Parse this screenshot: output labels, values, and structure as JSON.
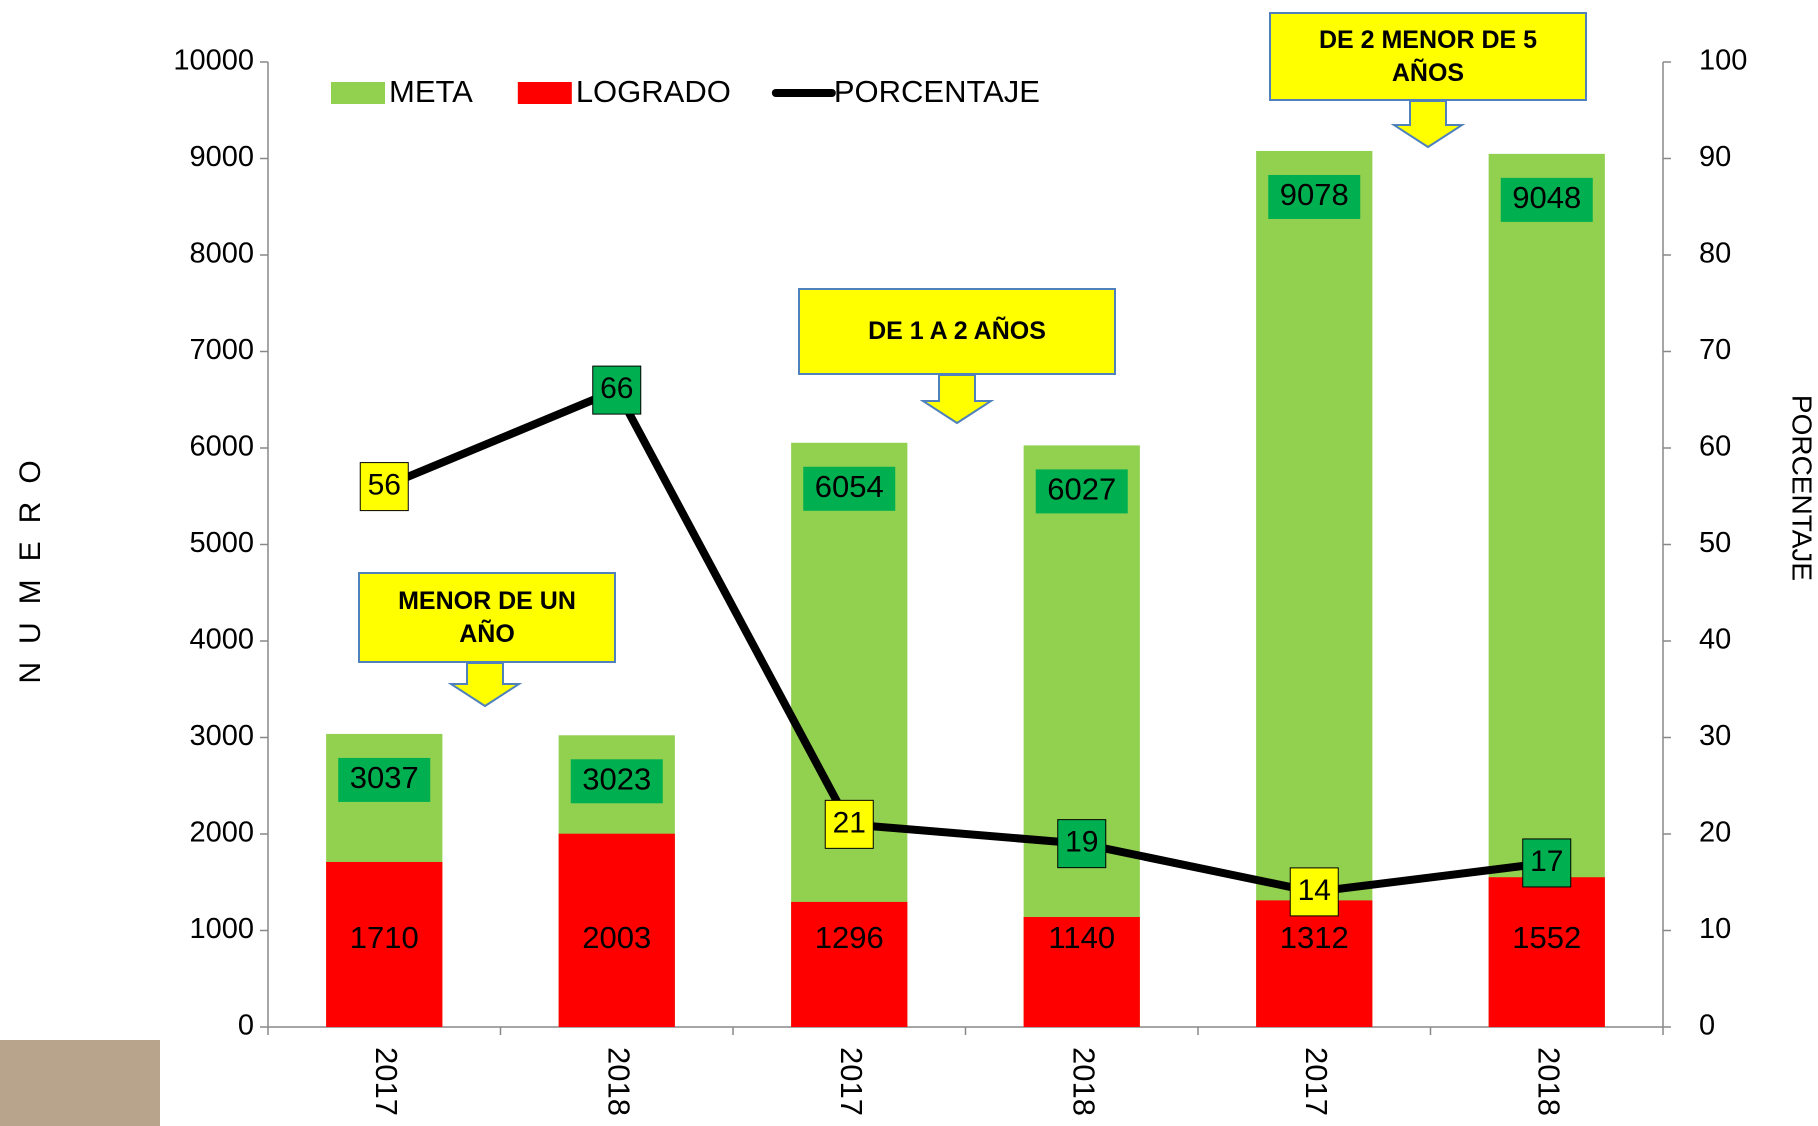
{
  "chart_data": {
    "type": "bar-line",
    "categories": [
      "2017",
      "2018",
      "2017",
      "2018",
      "2017",
      "2018"
    ],
    "series": [
      {
        "name": "META",
        "color": "#92d050",
        "values": [
          3037,
          3023,
          6054,
          6027,
          9078,
          9048
        ],
        "label_color": "#00b050"
      },
      {
        "name": "LOGRADO",
        "color": "#ff0000",
        "values": [
          1710,
          2003,
          1296,
          1140,
          1312,
          1552
        ]
      },
      {
        "name": "PORCENTAJE",
        "color": "#000000",
        "axis": "y2",
        "values": [
          56,
          66,
          21,
          19,
          14,
          17
        ],
        "label_colors": [
          "#ffff00",
          "#00b050",
          "#ffff00",
          "#00b050",
          "#ffff00",
          "#00b050"
        ]
      }
    ],
    "ylabel": "NUMERO",
    "y2label": "PORCENTAJE",
    "ylim": [
      0,
      10000
    ],
    "yticks": [
      0,
      1000,
      2000,
      3000,
      4000,
      5000,
      6000,
      7000,
      8000,
      9000,
      10000
    ],
    "y2lim": [
      0,
      100
    ],
    "y2ticks": [
      0,
      10,
      20,
      30,
      40,
      50,
      60,
      70,
      80,
      90,
      100
    ],
    "annotations": [
      "MENOR DE UN AÑO",
      "DE 1 A 2 AÑOS",
      "DE 2 MENOR DE 5 AÑOS"
    ],
    "legend": "top-left"
  }
}
